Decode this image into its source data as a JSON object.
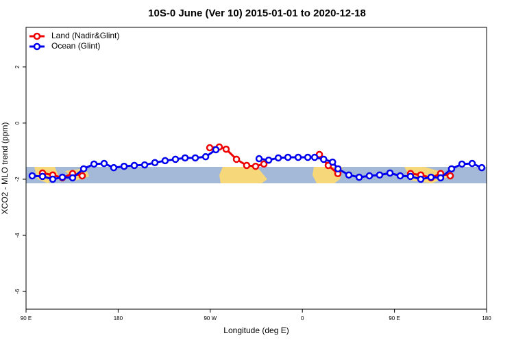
{
  "chart_data": {
    "type": "line",
    "title": "10S-0 June (Ver 10)   2015-01-01 to 2020-12-18",
    "x_label": "Longitude (deg E)",
    "y_label": "XCO2 - MLO trend (ppm)",
    "xlim": [
      90,
      540
    ],
    "ylim": [
      -6.63,
      3.41
    ],
    "xticks": [
      {
        "value": 90,
        "label": "90 E"
      },
      {
        "value": 180,
        "label": "180"
      },
      {
        "value": 270,
        "label": "90 W"
      },
      {
        "value": 360,
        "label": "0"
      },
      {
        "value": 450,
        "label": "90 E"
      },
      {
        "value": 540,
        "label": "180"
      }
    ],
    "yticks": [
      2,
      0,
      -2,
      -4,
      -6
    ],
    "legend": "top-left",
    "series": [
      {
        "name": "Land (Nadir&Glint)",
        "color": "#ee0000",
        "x": [
          106.1,
          116.1,
          125.5,
          135.5,
          144.9,
          200,
          269.5,
          278.8,
          285.5,
          295.6,
          305.6,
          314.3,
          322.4,
          350,
          376.6,
          385.3,
          394.7,
          430,
          465.7,
          475.7,
          485.7,
          495.1,
          504.5
        ],
        "values": [
          -1.78,
          -1.85,
          -1.95,
          -1.8,
          -1.88,
          null,
          -0.88,
          -0.85,
          -0.93,
          -1.29,
          -1.51,
          -1.54,
          -1.46,
          null,
          -1.12,
          -1.51,
          -1.8,
          null,
          -1.8,
          -1.85,
          -1.95,
          -1.8,
          -1.88
        ]
      },
      {
        "name": "Ocean (Glint)",
        "color": "#0000ee",
        "x": [
          96.0,
          106.1,
          116.1,
          125.5,
          135.5,
          146.3,
          156.4,
          166.3,
          175.7,
          185.8,
          195.8,
          205.9,
          215.9,
          225.9,
          236.0,
          245.4,
          255.4,
          265.5,
          275.5,
          296,
          317.7,
          327.1,
          336.5,
          345.9,
          355.9,
          365.3,
          372.0,
          380.8,
          389.5,
          394.8,
          405.4,
          415.5,
          425.5,
          435.5,
          445.6,
          455.6,
          465.6,
          475.7,
          485.7,
          495.1,
          505.8,
          515.9,
          525.9,
          535.3
        ],
        "values": [
          -1.88,
          -1.9,
          -2.0,
          -1.93,
          -1.95,
          -1.63,
          -1.46,
          -1.44,
          -1.59,
          -1.54,
          -1.51,
          -1.49,
          -1.41,
          -1.34,
          -1.29,
          -1.24,
          -1.24,
          -1.2,
          -0.95,
          null,
          -1.27,
          -1.32,
          -1.24,
          -1.22,
          -1.22,
          -1.22,
          -1.22,
          -1.29,
          -1.39,
          -1.63,
          -1.85,
          -1.93,
          -1.88,
          -1.85,
          -1.78,
          -1.88,
          -1.9,
          -2.0,
          -1.93,
          -1.95,
          -1.63,
          -1.46,
          -1.44,
          -1.59
        ]
      }
    ]
  }
}
